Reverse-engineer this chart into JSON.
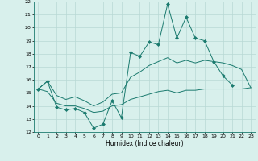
{
  "x": [
    0,
    1,
    2,
    3,
    4,
    5,
    6,
    7,
    8,
    9,
    10,
    11,
    12,
    13,
    14,
    15,
    16,
    17,
    18,
    19,
    20,
    21,
    22,
    23
  ],
  "y_top": [
    15.3,
    15.9,
    13.9,
    13.7,
    13.8,
    13.5,
    12.3,
    12.6,
    14.4,
    13.1,
    18.1,
    17.8,
    18.9,
    18.7,
    21.8,
    19.2,
    20.8,
    19.2,
    19.0,
    17.4,
    16.3,
    15.6,
    null,
    null
  ],
  "y_mid_upper": [
    15.3,
    15.9,
    14.8,
    14.5,
    14.7,
    14.4,
    14.0,
    14.3,
    14.9,
    15.0,
    16.2,
    16.6,
    17.1,
    17.4,
    17.7,
    17.3,
    17.5,
    17.3,
    17.5,
    17.4,
    17.3,
    17.1,
    16.8,
    15.4
  ],
  "y_mid_lower": [
    15.3,
    15.1,
    14.2,
    14.0,
    14.0,
    13.8,
    13.5,
    13.6,
    14.0,
    14.1,
    14.5,
    14.7,
    14.9,
    15.1,
    15.2,
    15.0,
    15.2,
    15.2,
    15.3,
    15.3,
    15.3,
    15.3,
    15.3,
    15.4
  ],
  "ylim": [
    12,
    22
  ],
  "xlim": [
    -0.5,
    23.5
  ],
  "yticks": [
    12,
    13,
    14,
    15,
    16,
    17,
    18,
    19,
    20,
    21,
    22
  ],
  "xticks": [
    0,
    1,
    2,
    3,
    4,
    5,
    6,
    7,
    8,
    9,
    10,
    11,
    12,
    13,
    14,
    15,
    16,
    17,
    18,
    19,
    20,
    21,
    22,
    23
  ],
  "xlabel": "Humidex (Indice chaleur)",
  "line_color": "#1a7a6e",
  "bg_color": "#d8f0ec",
  "grid_color": "#b8d8d4",
  "marker": "D",
  "markersize": 2.0,
  "linewidth": 0.7
}
